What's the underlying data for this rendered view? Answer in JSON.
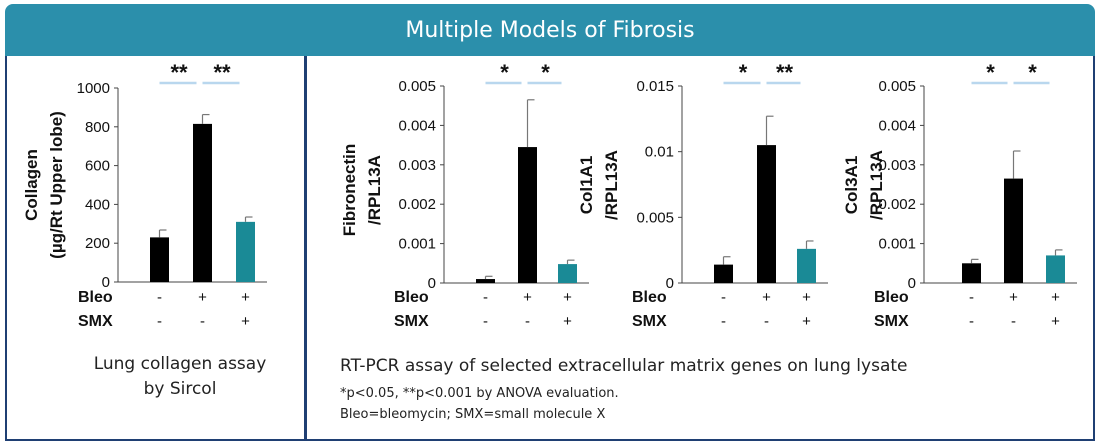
{
  "header": {
    "title": "Multiple Models of Fibrosis"
  },
  "captions": {
    "left": [
      "Lung collagen assay",
      "by Sircol"
    ],
    "right": "RT-PCR assay of selected extracellular matrix genes on lung lysate",
    "footnote1": "*p<0.05, **p<0.001 by ANOVA evaluation.",
    "footnote2": "Bleo=bleomycin; SMX=small molecule X"
  },
  "colors": {
    "header_bg": "#2b8fab",
    "bar_black": "#000000",
    "bar_teal": "#1a8a96",
    "sig_line": "#b9d7ee",
    "border": "#1f3f73"
  },
  "conditions": {
    "row_labels": [
      "Bleo",
      "SMX"
    ],
    "Bleo": [
      "-",
      "+",
      "+"
    ],
    "SMX": [
      "-",
      "-",
      "+"
    ]
  },
  "chart_data": [
    {
      "type": "bar",
      "ylabel": [
        "Collagen",
        "(µg/Rt Upper lobe)"
      ],
      "ylim": [
        0,
        1000
      ],
      "yticks": [
        "0",
        "200",
        "400",
        "600",
        "800",
        "1000"
      ],
      "values": [
        230,
        815,
        310
      ],
      "errors": [
        38,
        48,
        25
      ],
      "significance": [
        "**",
        "**"
      ]
    },
    {
      "type": "bar",
      "ylabel": [
        "Fibronectin",
        "/RPL13A"
      ],
      "ylim": [
        0,
        0.005
      ],
      "yticks": [
        "0",
        "0.001",
        "0.002",
        "0.003",
        "0.004",
        "0.005"
      ],
      "values": [
        0.0001,
        0.00345,
        0.00048
      ],
      "errors": [
        7e-05,
        0.0012,
        0.0001
      ],
      "significance": [
        "*",
        "*"
      ]
    },
    {
      "type": "bar",
      "ylabel": [
        "Col1A1",
        "/RPL13A"
      ],
      "ylim": [
        0,
        0.015
      ],
      "yticks": [
        "0",
        "0.005",
        "0.01",
        "0.015"
      ],
      "values": [
        0.0014,
        0.0105,
        0.0026
      ],
      "errors": [
        0.0006,
        0.0022,
        0.0006
      ],
      "significance": [
        "*",
        "**"
      ]
    },
    {
      "type": "bar",
      "ylabel": [
        "Col3A1",
        "/RPL13A"
      ],
      "ylim": [
        0,
        0.005
      ],
      "yticks": [
        "0",
        "0.001",
        "0.002",
        "0.003",
        "0.004",
        "0.005"
      ],
      "values": [
        0.0005,
        0.00265,
        0.0007
      ],
      "errors": [
        0.0001,
        0.0007,
        0.00014
      ],
      "significance": [
        "*",
        "*"
      ]
    }
  ]
}
